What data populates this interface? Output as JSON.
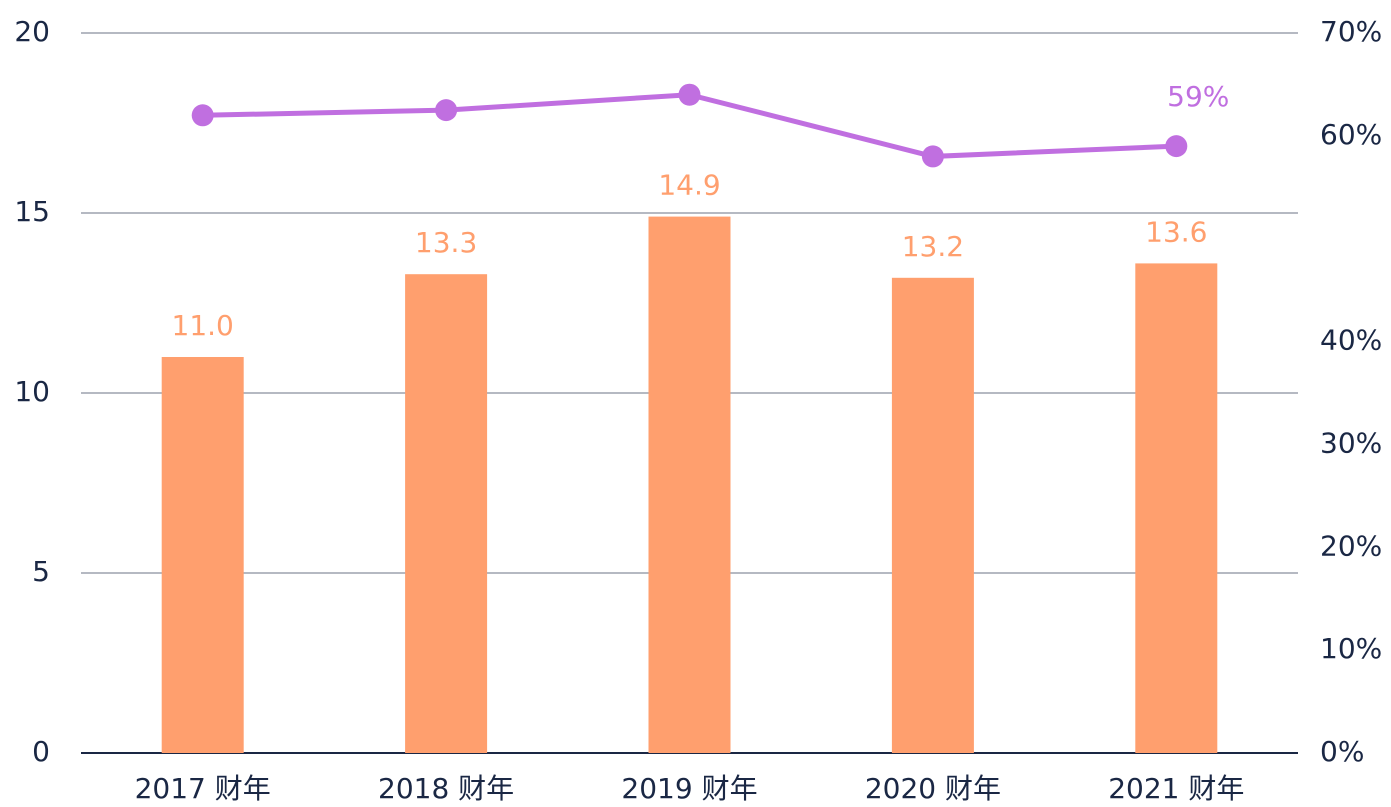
{
  "chart_data": {
    "type": "bar-line",
    "categories": [
      "2017 财年",
      "2018 财年",
      "2019 财年",
      "2020 财年",
      "2021 财年"
    ],
    "series": [
      {
        "type": "bar",
        "color": "#ff9f6e",
        "values": [
          11.0,
          13.3,
          14.9,
          13.2,
          13.6
        ],
        "value_labels": [
          "11.0",
          "13.3",
          "14.9",
          "13.2",
          "13.6"
        ]
      },
      {
        "type": "line",
        "axis": "y2",
        "color": "#c06fe0",
        "values": [
          62,
          62.5,
          64,
          58,
          59
        ],
        "value_labels": [
          null,
          null,
          null,
          null,
          "59%"
        ]
      }
    ],
    "ylim": [
      0,
      20
    ],
    "yticks": [
      0,
      5,
      10,
      15,
      20
    ],
    "y2lim": [
      0,
      70
    ],
    "y2ticks": [
      {
        "value": 0,
        "label": "0%"
      },
      {
        "value": 10,
        "label": "10%"
      },
      {
        "value": 20,
        "label": "20%"
      },
      {
        "value": 30,
        "label": "30%"
      },
      {
        "value": 40,
        "label": "40%"
      },
      {
        "value": 60,
        "label": "60%"
      },
      {
        "value": 70,
        "label": "70%"
      }
    ],
    "grid": true
  }
}
